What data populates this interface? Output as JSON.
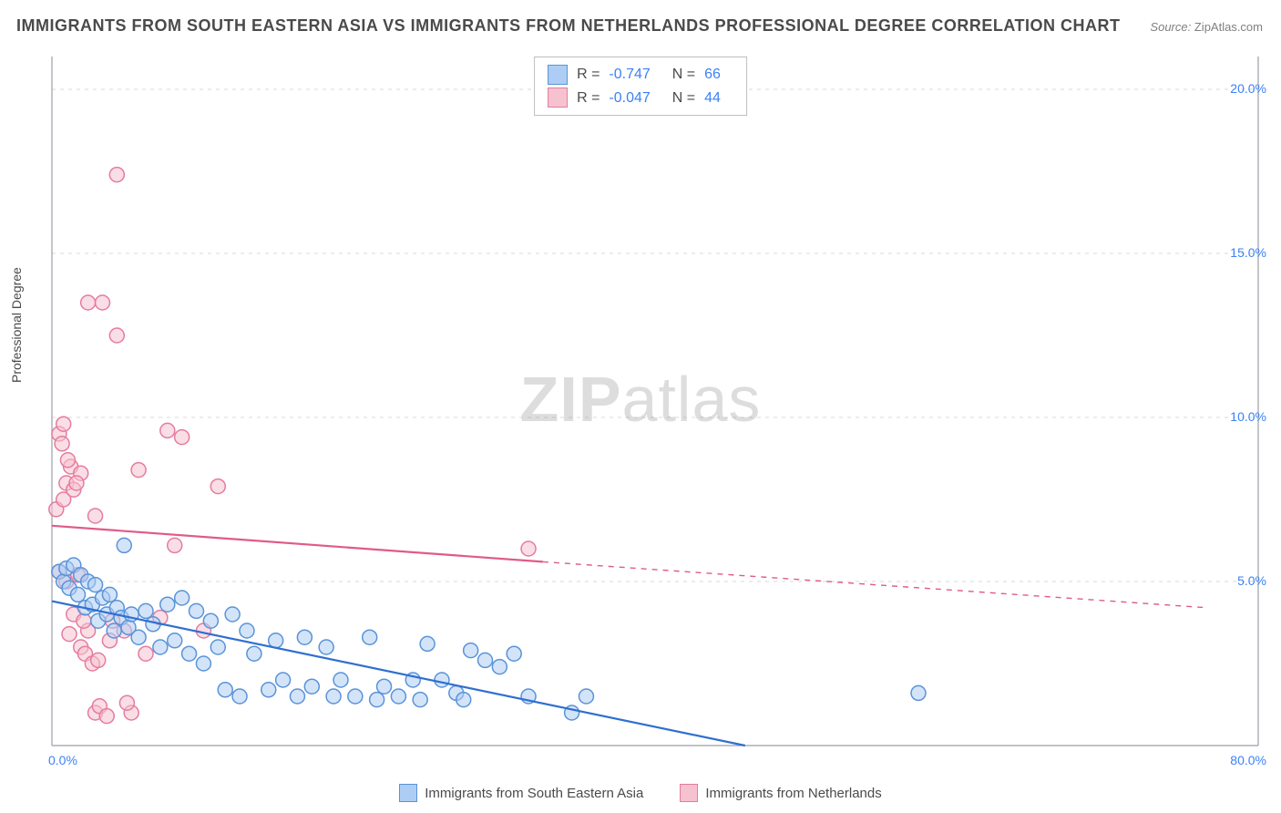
{
  "title": "IMMIGRANTS FROM SOUTH EASTERN ASIA VS IMMIGRANTS FROM NETHERLANDS PROFESSIONAL DEGREE CORRELATION CHART",
  "source_label": "Source:",
  "source_value": "ZipAtlas.com",
  "watermark_a": "ZIP",
  "watermark_b": "atlas",
  "chart": {
    "type": "scatter",
    "ylabel": "Professional Degree",
    "xlim": [
      0,
      80
    ],
    "ylim": [
      0,
      21
    ],
    "x_ticks": [
      {
        "v": 0,
        "label": "0.0%"
      },
      {
        "v": 80,
        "label": "80.0%"
      }
    ],
    "y_ticks": [
      {
        "v": 5,
        "label": "5.0%"
      },
      {
        "v": 10,
        "label": "10.0%"
      },
      {
        "v": 15,
        "label": "15.0%"
      },
      {
        "v": 20,
        "label": "20.0%"
      }
    ],
    "grid_color": "#d9d9d9",
    "axis_color": "#9aa0a6",
    "background_color": "#ffffff",
    "marker_radius": 8,
    "marker_stroke_width": 1.5,
    "marker_opacity": 0.55,
    "line_width": 2.2,
    "series": [
      {
        "id": "sea",
        "label": "Immigrants from South Eastern Asia",
        "fill": "#aecdf4",
        "stroke": "#5a93d8",
        "line_color": "#2f6fd0",
        "R": "-0.747",
        "N": "66",
        "trend": {
          "x1": 0,
          "y1": 4.4,
          "x2": 48,
          "y2": 0.0,
          "dash_x1": 48,
          "dash_y1": 0,
          "dash_x2": 48,
          "dash_y2": 0
        },
        "points": [
          [
            0.5,
            5.3
          ],
          [
            0.8,
            5.0
          ],
          [
            1.0,
            5.4
          ],
          [
            1.2,
            4.8
          ],
          [
            1.5,
            5.5
          ],
          [
            1.8,
            4.6
          ],
          [
            2.0,
            5.2
          ],
          [
            2.3,
            4.2
          ],
          [
            2.5,
            5.0
          ],
          [
            2.8,
            4.3
          ],
          [
            3.0,
            4.9
          ],
          [
            3.2,
            3.8
          ],
          [
            3.5,
            4.5
          ],
          [
            3.8,
            4.0
          ],
          [
            4.0,
            4.6
          ],
          [
            4.3,
            3.5
          ],
          [
            4.5,
            4.2
          ],
          [
            4.8,
            3.9
          ],
          [
            5.0,
            6.1
          ],
          [
            5.3,
            3.6
          ],
          [
            5.5,
            4.0
          ],
          [
            6.0,
            3.3
          ],
          [
            6.5,
            4.1
          ],
          [
            7.0,
            3.7
          ],
          [
            7.5,
            3.0
          ],
          [
            8.0,
            4.3
          ],
          [
            8.5,
            3.2
          ],
          [
            9.0,
            4.5
          ],
          [
            9.5,
            2.8
          ],
          [
            10.0,
            4.1
          ],
          [
            10.5,
            2.5
          ],
          [
            11.0,
            3.8
          ],
          [
            11.5,
            3.0
          ],
          [
            12.0,
            1.7
          ],
          [
            12.5,
            4.0
          ],
          [
            13.0,
            1.5
          ],
          [
            13.5,
            3.5
          ],
          [
            14.0,
            2.8
          ],
          [
            15.0,
            1.7
          ],
          [
            15.5,
            3.2
          ],
          [
            16.0,
            2.0
          ],
          [
            17.0,
            1.5
          ],
          [
            17.5,
            3.3
          ],
          [
            18.0,
            1.8
          ],
          [
            19.0,
            3.0
          ],
          [
            19.5,
            1.5
          ],
          [
            20.0,
            2.0
          ],
          [
            21.0,
            1.5
          ],
          [
            22.0,
            3.3
          ],
          [
            22.5,
            1.4
          ],
          [
            23.0,
            1.8
          ],
          [
            24.0,
            1.5
          ],
          [
            25.0,
            2.0
          ],
          [
            25.5,
            1.4
          ],
          [
            26.0,
            3.1
          ],
          [
            27.0,
            2.0
          ],
          [
            28.0,
            1.6
          ],
          [
            28.5,
            1.4
          ],
          [
            29.0,
            2.9
          ],
          [
            30.0,
            2.6
          ],
          [
            31.0,
            2.4
          ],
          [
            32.0,
            2.8
          ],
          [
            33.0,
            1.5
          ],
          [
            36.0,
            1.0
          ],
          [
            37.0,
            1.5
          ],
          [
            60.0,
            1.6
          ]
        ]
      },
      {
        "id": "nl",
        "label": "Immigrants from Netherlands",
        "fill": "#f6c2cf",
        "stroke": "#e67ba0",
        "line_color": "#e05a8a",
        "R": "-0.047",
        "N": "44",
        "trend": {
          "x1": 0,
          "y1": 6.7,
          "x2": 34,
          "y2": 5.6,
          "dash_x1": 34,
          "dash_y1": 5.6,
          "dash_x2": 80,
          "dash_y2": 4.2
        },
        "points": [
          [
            0.3,
            7.2
          ],
          [
            0.5,
            9.5
          ],
          [
            0.5,
            5.3
          ],
          [
            0.8,
            9.8
          ],
          [
            0.8,
            7.5
          ],
          [
            1.0,
            5.0
          ],
          [
            1.0,
            8.0
          ],
          [
            1.2,
            3.4
          ],
          [
            1.3,
            8.5
          ],
          [
            1.5,
            7.8
          ],
          [
            1.5,
            4.0
          ],
          [
            1.8,
            5.2
          ],
          [
            2.0,
            3.0
          ],
          [
            2.0,
            8.3
          ],
          [
            2.3,
            2.8
          ],
          [
            2.5,
            13.5
          ],
          [
            2.5,
            3.5
          ],
          [
            2.8,
            2.5
          ],
          [
            3.0,
            1.0
          ],
          [
            3.0,
            7.0
          ],
          [
            3.3,
            1.2
          ],
          [
            3.5,
            13.5
          ],
          [
            3.8,
            0.9
          ],
          [
            4.0,
            3.2
          ],
          [
            4.5,
            12.5
          ],
          [
            4.5,
            17.4
          ],
          [
            5.0,
            3.5
          ],
          [
            5.5,
            1.0
          ],
          [
            6.0,
            8.4
          ],
          [
            6.5,
            2.8
          ],
          [
            7.5,
            3.9
          ],
          [
            8.0,
            9.6
          ],
          [
            8.5,
            6.1
          ],
          [
            9.0,
            9.4
          ],
          [
            10.5,
            3.5
          ],
          [
            11.5,
            7.9
          ],
          [
            33.0,
            6.0
          ],
          [
            0.7,
            9.2
          ],
          [
            1.1,
            8.7
          ],
          [
            1.7,
            8.0
          ],
          [
            2.2,
            3.8
          ],
          [
            3.2,
            2.6
          ],
          [
            4.2,
            3.8
          ],
          [
            5.2,
            1.3
          ]
        ]
      }
    ]
  },
  "legend": {
    "r_label": "R =",
    "n_label": "N ="
  }
}
